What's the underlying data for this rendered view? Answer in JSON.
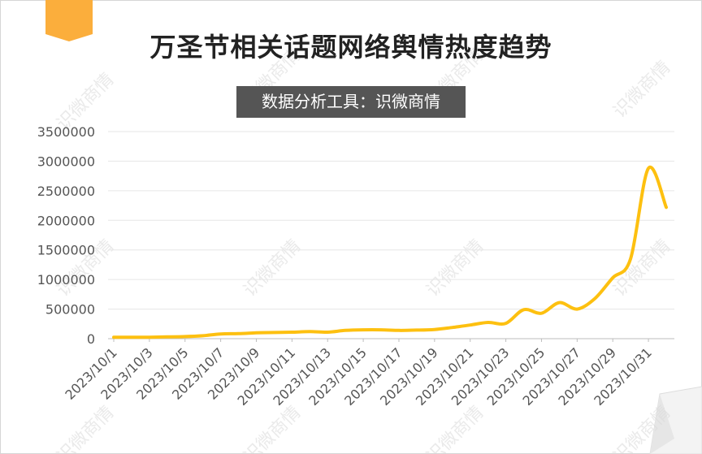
{
  "title": "万圣节相关话题网络舆情热度趋势",
  "subtitle": "数据分析工具：识微商情",
  "watermark_text": "识微商情",
  "colors": {
    "line": "#FDC010",
    "ribbon": "#FBAE3C",
    "grid": "#e6e6e6",
    "axis": "#bdbdbd",
    "text": "#555555"
  },
  "chart_data": {
    "type": "line",
    "title": "万圣节相关话题网络舆情热度趋势",
    "xlabel": "",
    "ylabel": "",
    "ylim": [
      0,
      3500000
    ],
    "yticks": [
      0,
      500000,
      1000000,
      1500000,
      2000000,
      2500000,
      3000000,
      3500000
    ],
    "ytick_labels": [
      "0",
      "500000",
      "1000000",
      "1500000",
      "2000000",
      "2500000",
      "3000000",
      "3500000"
    ],
    "grid": true,
    "x": [
      "2023/10/1",
      "2023/10/2",
      "2023/10/3",
      "2023/10/4",
      "2023/10/5",
      "2023/10/6",
      "2023/10/7",
      "2023/10/8",
      "2023/10/9",
      "2023/10/10",
      "2023/10/11",
      "2023/10/12",
      "2023/10/13",
      "2023/10/14",
      "2023/10/15",
      "2023/10/16",
      "2023/10/17",
      "2023/10/18",
      "2023/10/19",
      "2023/10/20",
      "2023/10/21",
      "2023/10/22",
      "2023/10/23",
      "2023/10/24",
      "2023/10/25",
      "2023/10/26",
      "2023/10/27",
      "2023/10/28",
      "2023/10/29",
      "2023/10/30",
      "2023/10/31",
      "2023/11/1"
    ],
    "xtick_labels": [
      "2023/10/1",
      "2023/10/3",
      "2023/10/5",
      "2023/10/7",
      "2023/10/9",
      "2023/10/11",
      "2023/10/13",
      "2023/10/15",
      "2023/10/17",
      "2023/10/19",
      "2023/10/21",
      "2023/10/23",
      "2023/10/25",
      "2023/10/27",
      "2023/10/29",
      "2023/10/31"
    ],
    "series": [
      {
        "values": [
          25000,
          25000,
          25000,
          30000,
          35000,
          50000,
          80000,
          85000,
          100000,
          105000,
          110000,
          120000,
          110000,
          140000,
          150000,
          150000,
          140000,
          145000,
          155000,
          190000,
          230000,
          275000,
          260000,
          490000,
          430000,
          610000,
          500000,
          680000,
          1030000,
          1350000,
          2880000,
          2220000
        ]
      }
    ]
  }
}
